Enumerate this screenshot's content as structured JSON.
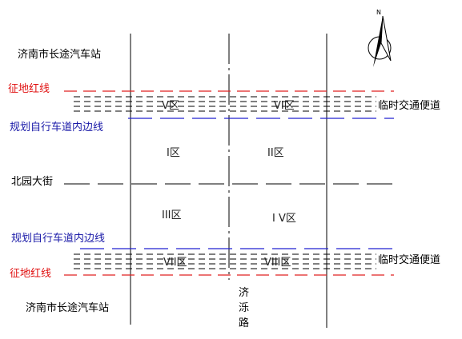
{
  "labels": {
    "station_top": "济南市长途汽车站",
    "station_bottom": "济南市长途汽车站",
    "red_line_top": "征地红线",
    "red_line_bottom": "征地红线",
    "blue_line_top": "规划自行车道内边线",
    "blue_line_bottom": "规划自行车道内边线",
    "temp_road_top": "临时交通便道",
    "temp_road_bottom": "临时交通便道",
    "street": "北园大街",
    "road_char1": "济",
    "road_char2": "泺",
    "road_char3": "路",
    "north": "N"
  },
  "zones": {
    "z1": "I区",
    "z2": "II区",
    "z3": "III区",
    "z4": "I V区",
    "z5": "V区",
    "z6": "VI区",
    "z7": "VII区",
    "z8": "VIII区"
  },
  "colors": {
    "red_line": "#e02020",
    "blue_line": "#2020d0",
    "blue_text": "#1a1aa8",
    "red_text": "#e01010",
    "black": "#000000"
  }
}
